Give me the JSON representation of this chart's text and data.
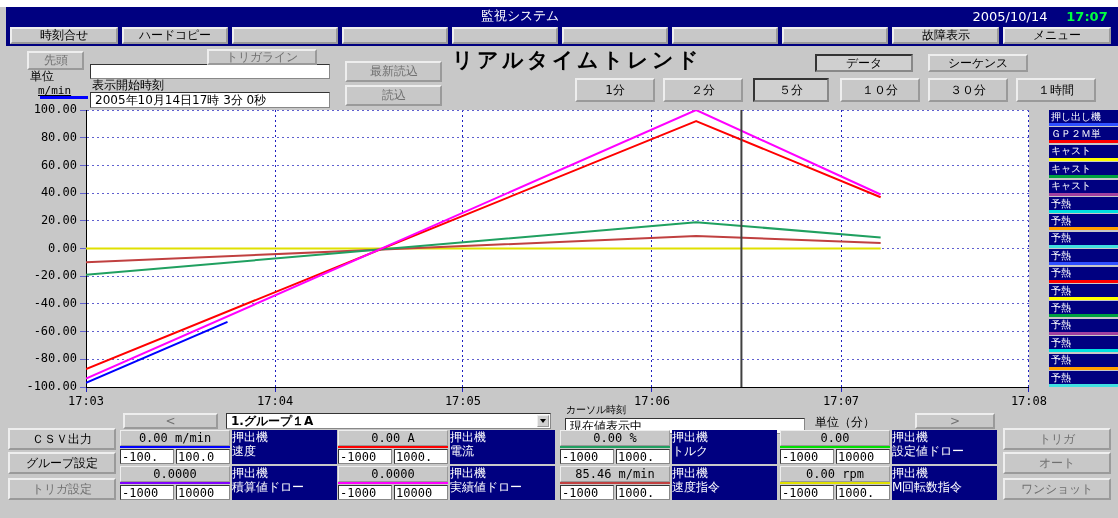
{
  "chart_data": {
    "type": "line",
    "title": "リアルタイムトレンド",
    "ylabel": "m/min",
    "x": [
      17.05,
      17.1039,
      17.1202
    ],
    "series": [
      {
        "color": "#ff00ff",
        "values": [
          -94,
          100,
          39
        ]
      },
      {
        "color": "#0000ff",
        "x": [
          17.05,
          17.0625
        ],
        "values": [
          -97,
          -53
        ]
      },
      {
        "color": "#ff0000",
        "values": [
          -87,
          92,
          37
        ]
      },
      {
        "color": "#20a060",
        "values": [
          -19,
          19,
          8
        ]
      },
      {
        "color": "#c04040",
        "values": [
          -10,
          9,
          4
        ]
      },
      {
        "color": "#e0e000",
        "values": [
          0,
          0,
          0
        ]
      }
    ],
    "xlim": [
      17.05,
      17.1333
    ],
    "xticks": [
      {
        "value": 17.05,
        "label": "17:03"
      },
      {
        "value": 17.0667,
        "label": "17:04"
      },
      {
        "value": 17.0833,
        "label": "17:05"
      },
      {
        "value": 17.1,
        "label": "17:06"
      },
      {
        "value": 17.1167,
        "label": "17:07"
      },
      {
        "value": 17.1333,
        "label": "17:08"
      }
    ],
    "ylim": [
      -100,
      100
    ],
    "yticks": [
      {
        "value": -100,
        "label": "-100.00"
      },
      {
        "value": -80,
        "label": "-80.00"
      },
      {
        "value": -60,
        "label": "-60.00"
      },
      {
        "value": -40,
        "label": "-40.00"
      },
      {
        "value": -20,
        "label": "-20.00"
      },
      {
        "value": 0,
        "label": "0.00"
      },
      {
        "value": 20,
        "label": "20.00"
      },
      {
        "value": 40,
        "label": "40.00"
      },
      {
        "value": 60,
        "label": "60.00"
      },
      {
        "value": 80,
        "label": "80.00"
      },
      {
        "value": 100,
        "label": "100.00"
      }
    ],
    "ref_lines": [
      {
        "axis": "x",
        "value": 17.1079,
        "color": "#404040"
      }
    ],
    "grid": true,
    "marker": "none",
    "line_style": "solid",
    "legend": false,
    "annotations": [
      "監視システム",
      "2005/10/14",
      "17:07",
      "時刻合せ",
      "ハードコピー",
      "故障表示",
      "メニュー",
      "先頭",
      "トリガライン",
      "単位",
      "表示開始時刻",
      "2005年10月14日17時 3分 0秒",
      "最新読込",
      "読込",
      "データ",
      "シーケンス",
      "1分",
      "２分",
      "５分",
      "１０分",
      "３０分",
      "１時間",
      "<",
      "1.グループ１A",
      "カーソル時刻",
      "現在値表示中",
      "単位（分）",
      ">",
      "ＣＳＶ出力",
      "グループ設定",
      "トリガ設定",
      "トリガ",
      "オート",
      "ワンショット",
      "0.00 m/min",
      "-100.",
      "100.0",
      "押出機",
      "速度",
      "0.00 A",
      "-1000",
      "1000.",
      "押出機",
      "電流",
      "0.00 %",
      "-1000",
      "1000.",
      "押出機",
      "トルク",
      "0.00",
      "-1000",
      "10000",
      "押出機",
      "設定値ドロー",
      "0.0000",
      "-1000",
      "10000",
      "押出機",
      "積算値ドロー",
      "0.0000",
      "-1000",
      "10000",
      "押出機",
      "実績値ドロー",
      "85.46 m/min",
      "-1000",
      "1000.",
      "押出機",
      "速度指令",
      "0.00 rpm",
      "-1000",
      "1000.",
      "押出機",
      "M回転数指令",
      "押し出し機",
      "ＧＰ２Ｍ単",
      "キャスト",
      "キャスト",
      "キャスト",
      "予熱",
      "予熱",
      "予熱",
      "予熱",
      "予熱",
      "予熱",
      "予熱",
      "予熱",
      "予熱",
      "予熱",
      "予熱"
    ]
  }
}
